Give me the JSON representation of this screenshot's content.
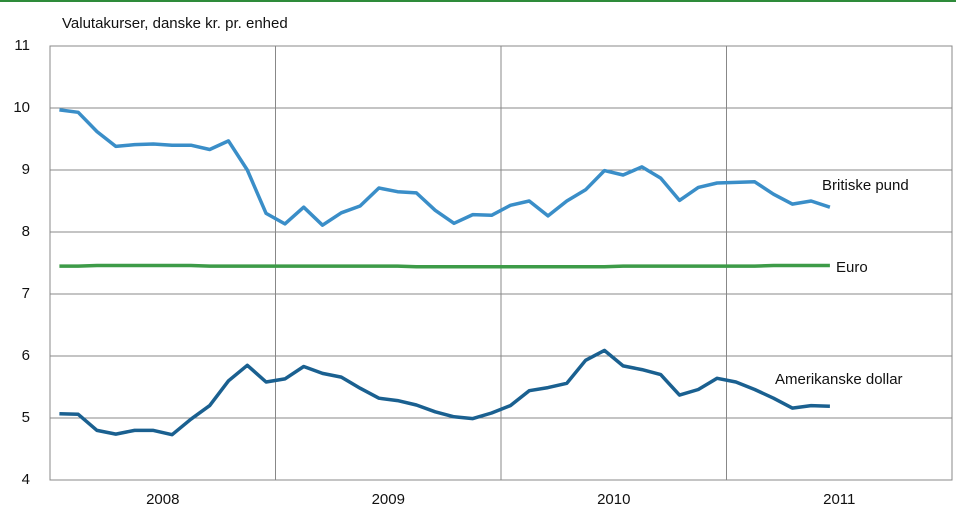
{
  "chart_data": {
    "type": "line",
    "ylabel": "Valutakurser, danske kr. pr. enhed",
    "categories": [
      null,
      null,
      null,
      null,
      null,
      null,
      null,
      null,
      null,
      null,
      null,
      null,
      null,
      null,
      null,
      null,
      null,
      null,
      null,
      null,
      null,
      null,
      null,
      null,
      null,
      null,
      null,
      null,
      null,
      null,
      null,
      null,
      null,
      null,
      null,
      null,
      null,
      null,
      null,
      null,
      null,
      null
    ],
    "xtick_labels": [
      "2008",
      "2009",
      "2010",
      "2011"
    ],
    "series": [
      {
        "name": "Britiske pund",
        "color": "#3a8ec8",
        "values": [
          9.97,
          9.93,
          9.62,
          9.38,
          9.41,
          9.42,
          9.4,
          9.4,
          9.33,
          9.47,
          9.0,
          8.3,
          8.13,
          8.4,
          8.11,
          8.31,
          8.42,
          8.71,
          8.65,
          8.63,
          8.35,
          8.14,
          8.28,
          8.27,
          8.43,
          8.5,
          8.26,
          8.5,
          8.68,
          8.99,
          8.92,
          9.05,
          8.87,
          8.51,
          8.72,
          8.79,
          8.8,
          8.81,
          8.61,
          8.45,
          8.5,
          8.4
        ]
      },
      {
        "name": "Euro",
        "color": "#3d9b48",
        "values": [
          7.45,
          7.45,
          7.46,
          7.46,
          7.46,
          7.46,
          7.46,
          7.46,
          7.45,
          7.45,
          7.45,
          7.45,
          7.45,
          7.45,
          7.45,
          7.45,
          7.45,
          7.45,
          7.45,
          7.44,
          7.44,
          7.44,
          7.44,
          7.44,
          7.44,
          7.44,
          7.44,
          7.44,
          7.44,
          7.44,
          7.45,
          7.45,
          7.45,
          7.45,
          7.45,
          7.45,
          7.45,
          7.45,
          7.46,
          7.46,
          7.46,
          7.46
        ]
      },
      {
        "name": "Amerikanske dollar",
        "color": "#1a6090",
        "values": [
          5.07,
          5.06,
          4.8,
          4.74,
          4.8,
          4.8,
          4.73,
          4.98,
          5.2,
          5.6,
          5.85,
          5.58,
          5.63,
          5.83,
          5.72,
          5.66,
          5.48,
          5.32,
          5.28,
          5.21,
          5.1,
          5.02,
          4.99,
          5.08,
          5.2,
          5.44,
          5.49,
          5.56,
          5.93,
          6.09,
          5.84,
          5.78,
          5.7,
          5.37,
          5.46,
          5.64,
          5.58,
          5.46,
          5.32,
          5.16,
          5.2,
          5.19
        ]
      }
    ],
    "ylim": [
      4,
      11
    ],
    "yticks": [
      4,
      5,
      6,
      7,
      8,
      9,
      10,
      11
    ],
    "grid": true
  }
}
